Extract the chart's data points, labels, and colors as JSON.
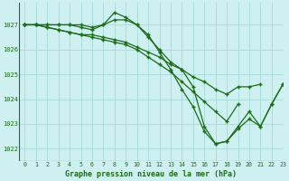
{
  "title": "Graphe pression niveau de la mer (hPa)",
  "background_color": "#cff0f0",
  "grid_color": "#aadddd",
  "line_color": "#1a6b1a",
  "xlim": [
    -0.5,
    23
  ],
  "ylim": [
    1021.5,
    1027.9
  ],
  "yticks": [
    1022,
    1023,
    1024,
    1025,
    1026,
    1027
  ],
  "xticks": [
    0,
    1,
    2,
    3,
    4,
    5,
    6,
    7,
    8,
    9,
    10,
    11,
    12,
    13,
    14,
    15,
    16,
    17,
    18,
    19,
    20,
    21,
    22,
    23
  ],
  "series": [
    {
      "x": [
        0,
        1,
        2,
        3,
        4,
        5,
        6,
        7,
        8,
        9,
        10,
        11,
        12,
        13,
        14,
        15,
        16,
        17,
        18,
        19,
        20,
        21,
        22,
        23
      ],
      "y": [
        1027.0,
        1027.0,
        1027.0,
        1027.0,
        1027.0,
        1027.0,
        1026.9,
        1027.0,
        1027.5,
        1027.3,
        1027.0,
        1026.5,
        1026.0,
        1025.5,
        1025.2,
        1024.5,
        1022.9,
        1022.2,
        1022.3,
        1022.8,
        1023.2,
        1022.9,
        1023.8,
        1024.6
      ]
    },
    {
      "x": [
        0,
        1,
        2,
        3,
        4,
        5,
        6,
        7,
        8,
        9,
        10,
        11,
        12,
        13,
        14,
        15,
        16,
        17,
        18,
        19,
        20,
        21,
        22,
        23
      ],
      "y": [
        1027.0,
        1027.0,
        1027.0,
        1027.0,
        1027.0,
        1026.9,
        1026.8,
        1027.0,
        1027.2,
        1027.2,
        1027.0,
        1026.6,
        1025.9,
        1025.2,
        1024.4,
        1023.7,
        1022.7,
        1022.2,
        1022.3,
        1022.9,
        1023.5,
        1022.9,
        1023.8,
        1024.6
      ]
    },
    {
      "x": [
        0,
        1,
        2,
        3,
        4,
        5,
        6,
        7,
        8,
        9,
        10,
        11,
        12,
        13,
        14,
        15,
        16,
        17,
        18,
        19,
        20,
        21
      ],
      "y": [
        1027.0,
        1027.0,
        1026.9,
        1026.8,
        1026.7,
        1026.6,
        1026.6,
        1026.5,
        1026.4,
        1026.3,
        1026.1,
        1025.9,
        1025.7,
        1025.4,
        1025.2,
        1024.9,
        1024.7,
        1024.4,
        1024.2,
        1024.5,
        1024.5,
        1024.6
      ]
    },
    {
      "x": [
        0,
        1,
        2,
        3,
        4,
        5,
        6,
        7,
        8,
        9,
        10,
        11,
        12,
        13,
        14,
        15,
        16,
        17,
        18,
        19
      ],
      "y": [
        1027.0,
        1027.0,
        1026.9,
        1026.8,
        1026.7,
        1026.6,
        1026.5,
        1026.4,
        1026.3,
        1026.2,
        1026.0,
        1025.7,
        1025.4,
        1025.1,
        1024.7,
        1024.3,
        1023.9,
        1023.5,
        1023.1,
        1023.8
      ]
    }
  ]
}
